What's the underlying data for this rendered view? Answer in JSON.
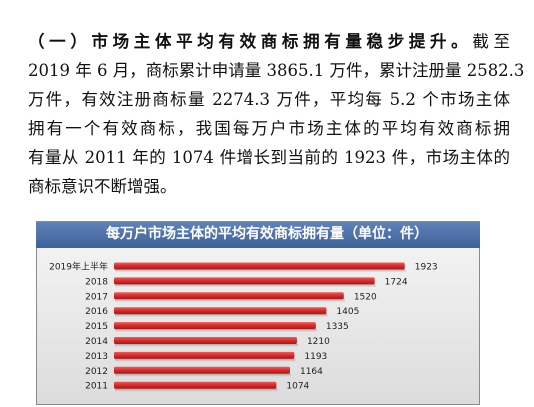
{
  "paragraph": {
    "line1_bold": "（一）市场主体平均有效商标拥有量稳步提升。",
    "line1_rest": "截至",
    "line2": "2019 年 6 月，商标累计申请量 3865.1 万件，累计注册量 2582.3",
    "line3": "万件，有效注册商标量 2274.3 万件，平均每 5.2 个市场主体",
    "line4": "拥有一个有效商标，我国每万户市场主体的平均有效商标拥",
    "line5": "有量从 2011 年的 1074 件增长到当前的 1923 件，市场主体的",
    "line6": "商标意识不断增强。"
  },
  "chart_data": {
    "type": "bar",
    "orientation": "horizontal",
    "title": "每万户市场主体的平均有效商标拥有量（单位：件）",
    "categories": [
      "2019年上半年",
      "2018",
      "2017",
      "2016",
      "2015",
      "2014",
      "2013",
      "2012",
      "2011"
    ],
    "values": [
      1923,
      1724,
      1520,
      1405,
      1335,
      1210,
      1193,
      1164,
      1074
    ],
    "value_labels": [
      "1923",
      "1724",
      "1520",
      "1405",
      "1335",
      "1210",
      "1193",
      "1164",
      "1074"
    ],
    "bar_color": "#d62a2a",
    "grid": false,
    "legend": "none"
  }
}
